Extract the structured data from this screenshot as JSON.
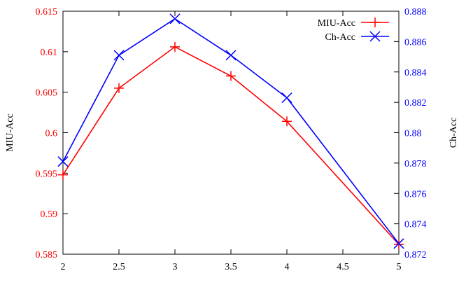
{
  "chart_data": {
    "type": "line",
    "x": [
      2,
      2.5,
      3,
      3.5,
      4,
      5
    ],
    "xticks": [
      "2",
      "2.5",
      "3",
      "3.5",
      "4",
      "4.5",
      "5"
    ],
    "xlim": [
      2,
      5
    ],
    "y_left": {
      "label": "MIU-Acc",
      "lim": [
        0.585,
        0.615
      ],
      "ticks": [
        "0.585",
        "0.59",
        "0.595",
        "0.6",
        "0.605",
        "0.61",
        "0.615"
      ],
      "color": "#ff0000"
    },
    "y_right": {
      "label": "Ch-Acc",
      "lim": [
        0.872,
        0.888
      ],
      "ticks": [
        "0.872",
        "0.874",
        "0.876",
        "0.878",
        "0.88",
        "0.882",
        "0.884",
        "0.886",
        "0.888"
      ],
      "color": "#0000ff"
    },
    "series": [
      {
        "name": "MIU-Acc",
        "axis": "left",
        "marker": "plus",
        "color": "#ff0000",
        "values": [
          0.5948,
          0.6055,
          0.6106,
          0.607,
          0.6014,
          0.5862
        ]
      },
      {
        "name": "Ch-Acc",
        "axis": "right",
        "marker": "x",
        "color": "#0000ff",
        "values": [
          0.8781,
          0.8851,
          0.8875,
          0.8851,
          0.8823,
          0.8727
        ]
      }
    ],
    "legend": {
      "position": "top-right"
    },
    "grid": false
  }
}
